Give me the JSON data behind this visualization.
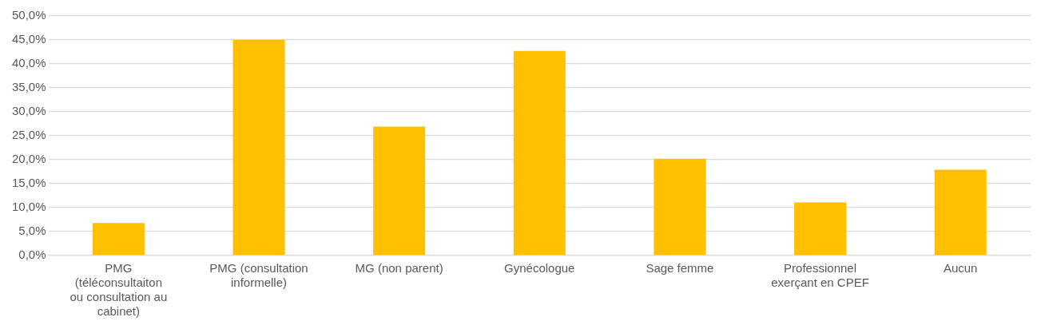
{
  "chart_data": {
    "type": "bar",
    "categories": [
      "PMG (téléconsultaiton ou consultation au cabinet)",
      "PMG (consultation informelle)",
      "MG (non parent)",
      "Gynécologue",
      "Sage femme",
      "Professionnel exerçant en CPEF",
      "Aucun"
    ],
    "values": [
      6.8,
      45.0,
      26.9,
      42.7,
      20.2,
      11.1,
      17.9
    ],
    "color": "#ffc000",
    "ylim": [
      0,
      50
    ],
    "yticks": [
      {
        "value": 0,
        "label": "0,0%"
      },
      {
        "value": 5,
        "label": "5,0%"
      },
      {
        "value": 10,
        "label": "10,0%"
      },
      {
        "value": 15,
        "label": "15,0%"
      },
      {
        "value": 20,
        "label": "20,0%"
      },
      {
        "value": 25,
        "label": "25,0%"
      },
      {
        "value": 30,
        "label": "30,0%"
      },
      {
        "value": 35,
        "label": "35,0%"
      },
      {
        "value": 40,
        "label": "40,0%"
      },
      {
        "value": 45,
        "label": "45,0%"
      },
      {
        "value": 50,
        "label": "50,0%"
      }
    ],
    "grid": "y"
  }
}
